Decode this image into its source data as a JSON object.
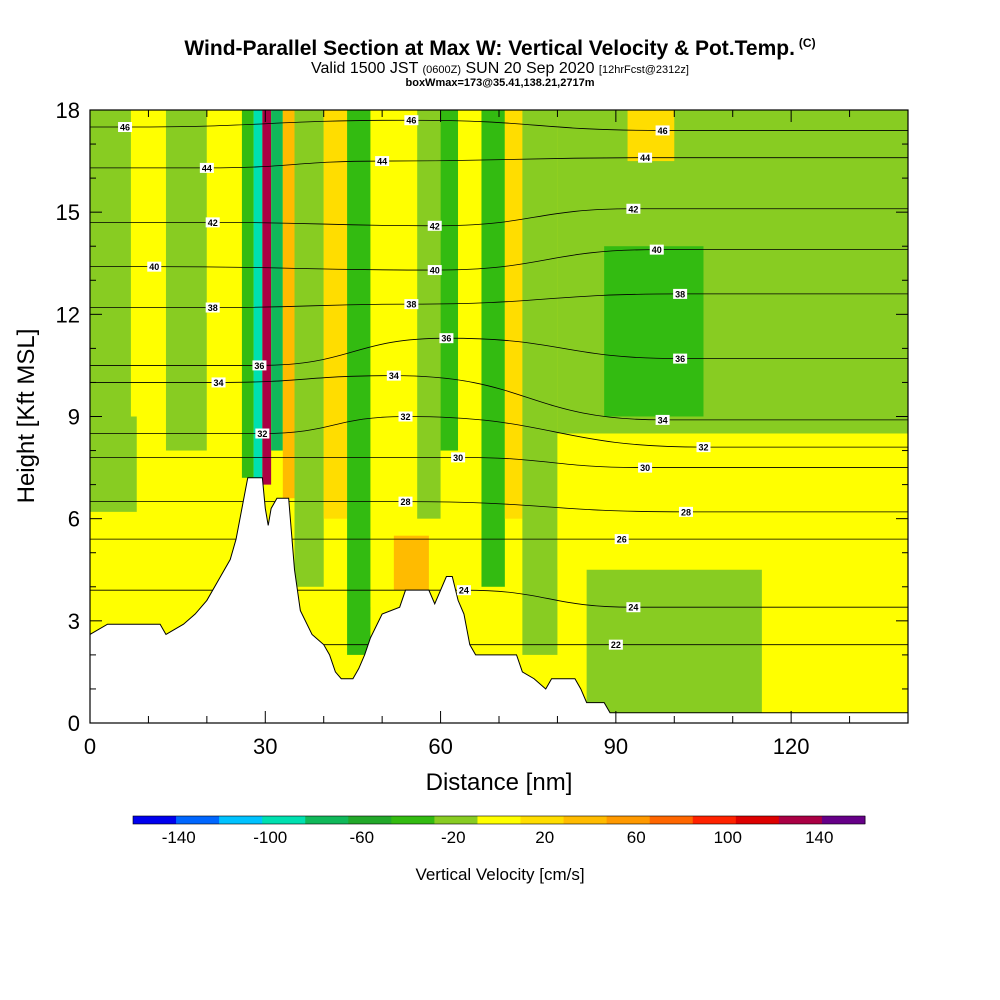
{
  "header": {
    "title": "Wind-Parallel Section at Max W: Vertical Velocity & Pot.Temp.",
    "copyright": "(C)",
    "subtitle_main": "Valid 1500 JST",
    "subtitle_z": "(0600Z)",
    "subtitle_date": "SUN 20 Sep 2020",
    "subtitle_fcst": "[12hrFcst@2312z]",
    "line3": "boxWmax=173@35.41,138.21,2717m"
  },
  "chart_data": {
    "type": "heatmap",
    "title": "Wind-Parallel Section at Max W: Vertical Velocity & Pot.Temp.",
    "xlabel": "Distance [nm]",
    "ylabel": "Height [Kft MSL]",
    "xlim": [
      0,
      140
    ],
    "ylim": [
      0,
      18
    ],
    "x_ticks": [
      "0",
      "30",
      "60",
      "90",
      "120"
    ],
    "y_ticks": [
      "0",
      "3",
      "6",
      "9",
      "12",
      "15",
      "18"
    ],
    "colorbar": {
      "title": "Vertical Velocity [cm/s]",
      "tick_labels": [
        "-140",
        "-100",
        "-60",
        "-20",
        "20",
        "60",
        "100",
        "140"
      ],
      "bins": [
        -160,
        -140,
        -120,
        -100,
        -80,
        -60,
        -40,
        -20,
        0,
        20,
        40,
        60,
        80,
        100,
        120,
        140,
        160
      ],
      "colors": [
        "#0000ee",
        "#0066ff",
        "#00c2ff",
        "#00e0b0",
        "#10b85a",
        "#22a82a",
        "#33bb11",
        "#88cc22",
        "#ffff00",
        "#ffdd00",
        "#ffbb00",
        "#ff9900",
        "#ff6600",
        "#ff2200",
        "#dd0000",
        "#aa0044",
        "#660088"
      ]
    },
    "terrain_kft": [
      [
        0,
        2.6
      ],
      [
        3,
        2.9
      ],
      [
        12,
        2.9
      ],
      [
        13,
        2.6
      ],
      [
        16,
        2.9
      ],
      [
        18,
        3.2
      ],
      [
        20,
        3.6
      ],
      [
        22,
        4.2
      ],
      [
        24,
        4.8
      ],
      [
        25,
        5.4
      ],
      [
        26,
        6.3
      ],
      [
        27,
        7.2
      ],
      [
        29.5,
        7.2
      ],
      [
        30,
        6.3
      ],
      [
        30.5,
        5.8
      ],
      [
        31,
        6.3
      ],
      [
        32,
        6.6
      ],
      [
        34,
        6.6
      ],
      [
        35,
        4.5
      ],
      [
        36,
        3.3
      ],
      [
        38,
        2.6
      ],
      [
        40,
        2.3
      ],
      [
        41,
        2.0
      ],
      [
        42,
        1.5
      ],
      [
        43,
        1.3
      ],
      [
        45,
        1.3
      ],
      [
        46,
        1.6
      ],
      [
        47,
        2.0
      ],
      [
        48,
        2.5
      ],
      [
        50,
        3.2
      ],
      [
        53,
        3.4
      ],
      [
        54,
        3.9
      ],
      [
        58,
        3.9
      ],
      [
        59,
        3.5
      ],
      [
        60,
        3.9
      ],
      [
        61,
        4.3
      ],
      [
        62,
        4.3
      ],
      [
        63,
        3.6
      ],
      [
        64,
        3.2
      ],
      [
        65,
        2.3
      ],
      [
        66,
        2.0
      ],
      [
        73,
        2.0
      ],
      [
        74,
        1.5
      ],
      [
        76,
        1.3
      ],
      [
        78,
        1.0
      ],
      [
        79,
        1.3
      ],
      [
        83,
        1.3
      ],
      [
        84,
        1.0
      ],
      [
        85,
        0.6
      ],
      [
        88,
        0.6
      ],
      [
        89,
        0.3
      ],
      [
        140,
        0.3
      ]
    ],
    "theta_contour_labels": [
      {
        "value": "46",
        "x": 6,
        "y": 17.5
      },
      {
        "value": "46",
        "x": 55,
        "y": 17.7
      },
      {
        "value": "46",
        "x": 98,
        "y": 17.4
      },
      {
        "value": "44",
        "x": 20,
        "y": 16.3
      },
      {
        "value": "44",
        "x": 50,
        "y": 16.5
      },
      {
        "value": "44",
        "x": 95,
        "y": 16.6
      },
      {
        "value": "42",
        "x": 21,
        "y": 14.7
      },
      {
        "value": "42",
        "x": 59,
        "y": 14.6
      },
      {
        "value": "42",
        "x": 93,
        "y": 15.1
      },
      {
        "value": "40",
        "x": 11,
        "y": 13.4
      },
      {
        "value": "40",
        "x": 59,
        "y": 13.3
      },
      {
        "value": "40",
        "x": 97,
        "y": 13.9
      },
      {
        "value": "38",
        "x": 21,
        "y": 12.2
      },
      {
        "value": "38",
        "x": 55,
        "y": 12.3
      },
      {
        "value": "38",
        "x": 101,
        "y": 12.6
      },
      {
        "value": "36",
        "x": 29,
        "y": 10.5
      },
      {
        "value": "36",
        "x": 61,
        "y": 11.3
      },
      {
        "value": "36",
        "x": 101,
        "y": 10.7
      },
      {
        "value": "34",
        "x": 22,
        "y": 10.0
      },
      {
        "value": "34",
        "x": 52,
        "y": 10.2
      },
      {
        "value": "34",
        "x": 98,
        "y": 8.9
      },
      {
        "value": "32",
        "x": 29.5,
        "y": 8.5
      },
      {
        "value": "32",
        "x": 54,
        "y": 9.0
      },
      {
        "value": "32",
        "x": 105,
        "y": 8.1
      },
      {
        "value": "30",
        "x": 63,
        "y": 7.8
      },
      {
        "value": "30",
        "x": 95,
        "y": 7.5
      },
      {
        "value": "28",
        "x": 54,
        "y": 6.5
      },
      {
        "value": "28",
        "x": 102,
        "y": 6.2
      },
      {
        "value": "26",
        "x": 91,
        "y": 5.4
      },
      {
        "value": "24",
        "x": 64,
        "y": 3.9
      },
      {
        "value": "24",
        "x": 93,
        "y": 3.4
      },
      {
        "value": "22",
        "x": 90,
        "y": 2.3
      }
    ],
    "velocity_patches": [
      {
        "x0": 0,
        "x1": 140,
        "y0": 0,
        "y1": 18,
        "w": 5
      },
      {
        "x0": 0,
        "x1": 8,
        "y0": 6.2,
        "y1": 18,
        "w": -15
      },
      {
        "x0": 7,
        "x1": 13,
        "y0": 9,
        "y1": 18,
        "w": 5
      },
      {
        "x0": 13,
        "x1": 20,
        "y0": 8,
        "y1": 18,
        "w": -12
      },
      {
        "x0": 20,
        "x1": 26,
        "y0": 3.5,
        "y1": 18,
        "w": 8
      },
      {
        "x0": 26,
        "x1": 28,
        "y0": 7.2,
        "y1": 18,
        "w": -30
      },
      {
        "x0": 28,
        "x1": 29.5,
        "y0": 7.2,
        "y1": 18,
        "w": -100
      },
      {
        "x0": 29.5,
        "x1": 31,
        "y0": 7,
        "y1": 18,
        "w": 150
      },
      {
        "x0": 31,
        "x1": 33,
        "y0": 8,
        "y1": 18,
        "w": -70
      },
      {
        "x0": 33,
        "x1": 35,
        "y0": 6.6,
        "y1": 18,
        "w": 40
      },
      {
        "x0": 35,
        "x1": 40,
        "y0": 4,
        "y1": 18,
        "w": -10
      },
      {
        "x0": 40,
        "x1": 44,
        "y0": 6,
        "y1": 18,
        "w": 20
      },
      {
        "x0": 44,
        "x1": 48,
        "y0": 2,
        "y1": 18,
        "w": -25
      },
      {
        "x0": 48,
        "x1": 56,
        "y0": 3.4,
        "y1": 18,
        "w": 15
      },
      {
        "x0": 52,
        "x1": 58,
        "y0": 3.9,
        "y1": 5.5,
        "w": 45
      },
      {
        "x0": 56,
        "x1": 60,
        "y0": 6,
        "y1": 18,
        "w": -15
      },
      {
        "x0": 60,
        "x1": 63,
        "y0": 8,
        "y1": 18,
        "w": -35
      },
      {
        "x0": 63,
        "x1": 67,
        "y0": 3,
        "y1": 18,
        "w": 10
      },
      {
        "x0": 67,
        "x1": 71,
        "y0": 4,
        "y1": 18,
        "w": -25
      },
      {
        "x0": 71,
        "x1": 74,
        "y0": 6,
        "y1": 18,
        "w": 30
      },
      {
        "x0": 74,
        "x1": 80,
        "y0": 2,
        "y1": 18,
        "w": -10
      },
      {
        "x0": 80,
        "x1": 140,
        "y0": 8.5,
        "y1": 18,
        "w": -15
      },
      {
        "x0": 88,
        "x1": 105,
        "y0": 9,
        "y1": 14,
        "w": -30
      },
      {
        "x0": 92,
        "x1": 100,
        "y0": 16.5,
        "y1": 18,
        "w": 30
      },
      {
        "x0": 80,
        "x1": 140,
        "y0": 4.5,
        "y1": 8.5,
        "w": 8
      },
      {
        "x0": 85,
        "x1": 115,
        "y0": 0.3,
        "y1": 4.5,
        "w": -12
      },
      {
        "x0": 115,
        "x1": 140,
        "y0": 0.3,
        "y1": 4.5,
        "w": 6
      },
      {
        "x0": 125,
        "x1": 140,
        "y0": 9,
        "y1": 18,
        "w": -12
      }
    ]
  }
}
